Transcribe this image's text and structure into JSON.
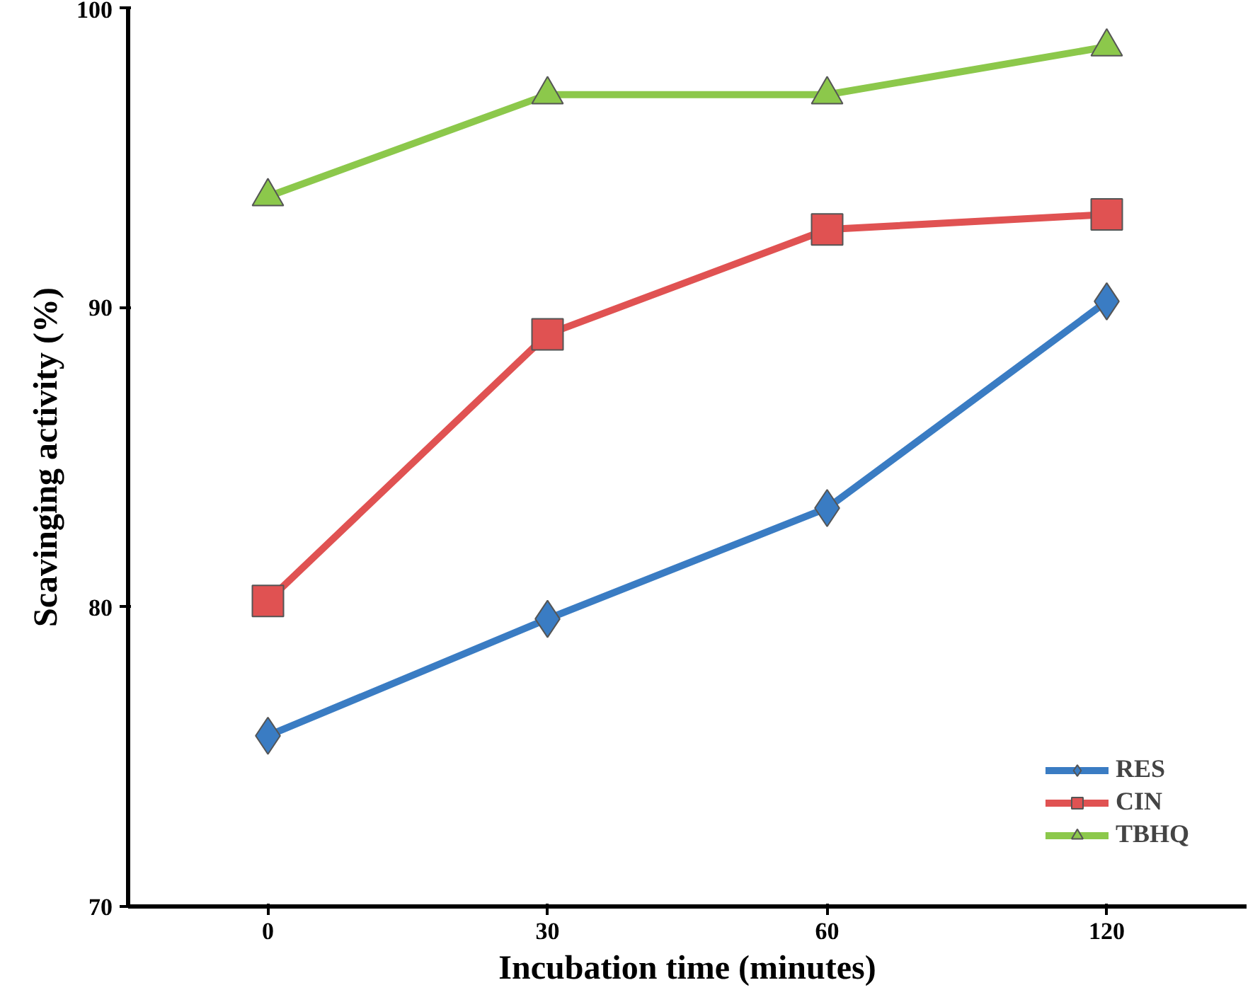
{
  "chart_data": {
    "type": "line",
    "xlabel": "Incubation time (minutes)",
    "ylabel": "Scavinging activity (%)",
    "categories": [
      "0",
      "30",
      "60",
      "120"
    ],
    "series": [
      {
        "name": "RES",
        "color": "#3a7cc3",
        "marker": "diamond",
        "values": [
          75.7,
          79.6,
          83.3,
          90.2
        ]
      },
      {
        "name": "CIN",
        "color": "#e05252",
        "marker": "square",
        "values": [
          80.2,
          89.1,
          92.6,
          93.1
        ]
      },
      {
        "name": "TBHQ",
        "color": "#8cc84b",
        "marker": "triangle",
        "values": [
          93.7,
          97.1,
          97.1,
          98.7
        ]
      }
    ],
    "ylim": [
      70,
      100
    ],
    "yticks": [
      70,
      80,
      90,
      100
    ],
    "grid": false,
    "legend": "bottom right",
    "line_style": "solid"
  }
}
